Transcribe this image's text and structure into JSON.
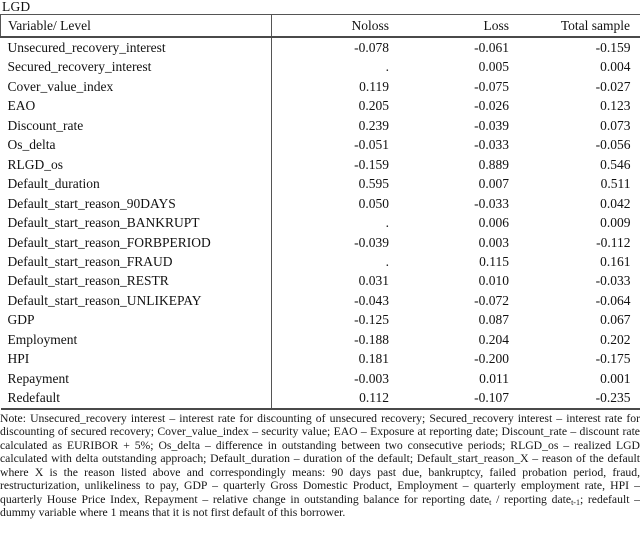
{
  "title": "LGD",
  "colors": {
    "background": "#ffffff",
    "text": "#111111",
    "border": "#555555"
  },
  "table": {
    "headers": [
      "Variable/ Level",
      "Noloss",
      "Loss",
      "Total sample"
    ],
    "rows": [
      {
        "variable": "Unsecured_recovery_interest",
        "noloss": "-0.078",
        "loss": "-0.061",
        "total": "-0.159"
      },
      {
        "variable": "Secured_recovery_interest",
        "noloss": ".",
        "loss": "0.005",
        "total": "0.004"
      },
      {
        "variable": "Cover_value_index",
        "noloss": "0.119",
        "loss": "-0.075",
        "total": "-0.027"
      },
      {
        "variable": "EAO",
        "noloss": "0.205",
        "loss": "-0.026",
        "total": "0.123"
      },
      {
        "variable": "Discount_rate",
        "noloss": "0.239",
        "loss": "-0.039",
        "total": "0.073"
      },
      {
        "variable": "Os_delta",
        "noloss": "-0.051",
        "loss": "-0.033",
        "total": "-0.056"
      },
      {
        "variable": "RLGD_os",
        "noloss": "-0.159",
        "loss": "0.889",
        "total": "0.546"
      },
      {
        "variable": "Default_duration",
        "noloss": "0.595",
        "loss": "0.007",
        "total": "0.511"
      },
      {
        "variable": "Default_start_reason_90DAYS",
        "noloss": "0.050",
        "loss": "-0.033",
        "total": "0.042"
      },
      {
        "variable": "Default_start_reason_BANKRUPT",
        "noloss": ".",
        "loss": "0.006",
        "total": "0.009"
      },
      {
        "variable": "Default_start_reason_FORBPERIOD",
        "noloss": "-0.039",
        "loss": "0.003",
        "total": "-0.112"
      },
      {
        "variable": "Default_start_reason_FRAUD",
        "noloss": ".",
        "loss": "0.115",
        "total": "0.161"
      },
      {
        "variable": "Default_start_reason_RESTR",
        "noloss": "0.031",
        "loss": "0.010",
        "total": "-0.033"
      },
      {
        "variable": "Default_start_reason_UNLIKEPAY",
        "noloss": "-0.043",
        "loss": "-0.072",
        "total": "-0.064"
      },
      {
        "variable": "GDP",
        "noloss": "-0.125",
        "loss": "0.087",
        "total": "0.067"
      },
      {
        "variable": "Employment",
        "noloss": "-0.188",
        "loss": "0.204",
        "total": "0.202"
      },
      {
        "variable": "HPI",
        "noloss": "0.181",
        "loss": "-0.200",
        "total": "-0.175"
      },
      {
        "variable": "Repayment",
        "noloss": "-0.003",
        "loss": "0.011",
        "total": "0.001"
      },
      {
        "variable": "Redefault",
        "noloss": "0.112",
        "loss": "-0.107",
        "total": "-0.235"
      }
    ]
  },
  "note": {
    "part1": "Note: Unsecured_recovery interest – interest rate for discounting of unsecured recovery; Secured_recovery interest – interest rate for discounting of secured recovery; Cover_value_index – security value; EAO – Exposure at reporting date; Discount_rate – discount rate calculated as EURIBOR + 5%; Os_delta – difference in outstanding between two consecutive periods; RLGD_os – realized LGD calculated with delta outstanding approach; Default_duration – duration of the default; Default_start_reason_X – reason of the default where X is the reason listed above and correspondingly means: 90 days past due, bankruptcy, failed probation period, fraud, restructurization, unlikeliness to pay, GDP – quarterly Gross Domestic Product, Employment – quarterly employment rate, HPI – quarterly House Price Index, Repayment – relative change in outstanding balance for reporting date",
    "sub1": "t",
    "part2": " / reporting date",
    "sub2": "t-1",
    "part3": "; redefault – dummy variable where 1 means that it is not first default of this borrower."
  }
}
